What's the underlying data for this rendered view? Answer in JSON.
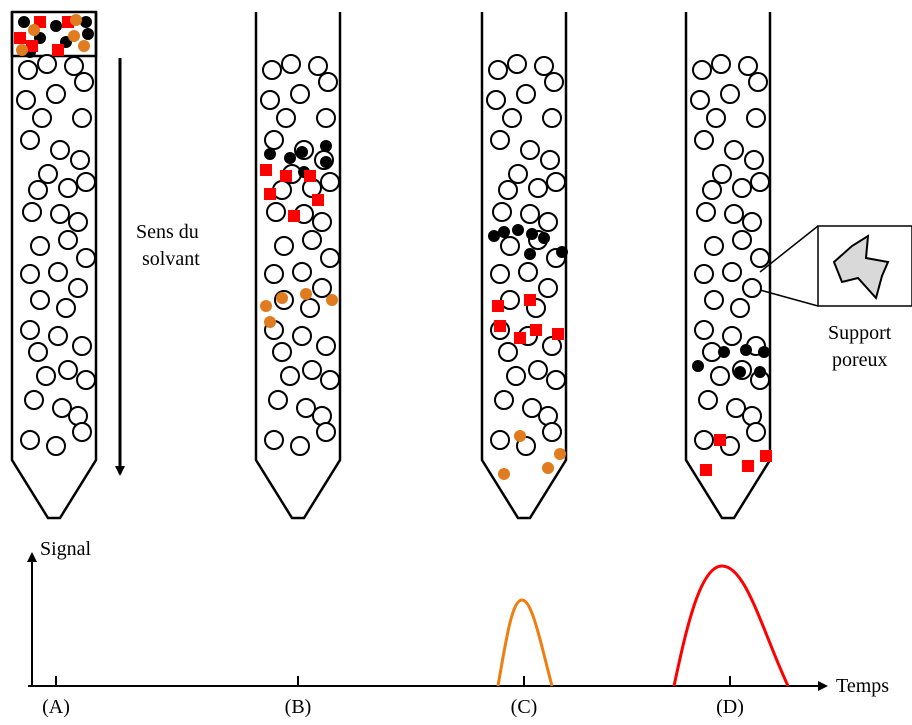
{
  "labels": {
    "solvent_direction": [
      "Sens du",
      "solvant"
    ],
    "porous_support": [
      "Support",
      "poreux"
    ],
    "y_axis": "Signal",
    "x_axis": "Temps",
    "columns": [
      "(A)",
      "(B)",
      "(C)",
      "(D)"
    ]
  },
  "colors": {
    "black_particle": "#000000",
    "red_particle": "#ff0000",
    "orange_particle": "#e07b1f",
    "orange_peak": "#f07d10",
    "red_peak": "#ff0000",
    "support_fill": "#d9d9d9"
  }
}
